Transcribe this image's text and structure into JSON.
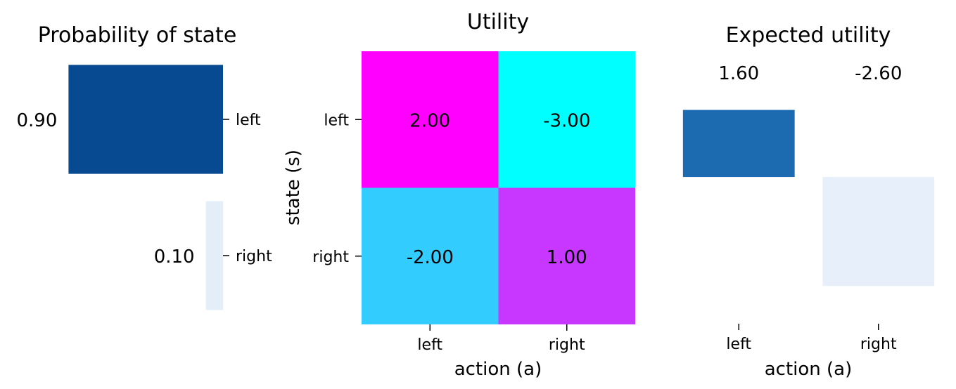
{
  "chart_data": [
    {
      "type": "bar",
      "orientation": "horizontal",
      "title": "Probability of state",
      "categories": [
        "left",
        "right"
      ],
      "values": [
        0.9,
        0.1
      ],
      "value_labels": [
        "0.90",
        "0.10"
      ],
      "colors": [
        "#084a91",
        "#e3eef9"
      ],
      "xlim": [
        1.0,
        0.0
      ],
      "grid": false
    },
    {
      "type": "heatmap",
      "title": "Utility",
      "xlabel": "action (a)",
      "ylabel": "state (s)",
      "x_categories": [
        "left",
        "right"
      ],
      "y_categories": [
        "left",
        "right"
      ],
      "values": [
        [
          2.0,
          -3.0
        ],
        [
          -2.0,
          1.0
        ]
      ],
      "value_labels": [
        [
          "2.00",
          "-3.00"
        ],
        [
          "-2.00",
          "1.00"
        ]
      ],
      "colors": [
        [
          "#ff00ff",
          "#00ffff"
        ],
        [
          "#33ccff",
          "#c837ff"
        ]
      ],
      "colormap": "cool"
    },
    {
      "type": "bar",
      "title": "Expected utility",
      "xlabel": "action (a)",
      "categories": [
        "left",
        "right"
      ],
      "values": [
        1.6,
        -2.6
      ],
      "value_labels": [
        "1.60",
        "-2.60"
      ],
      "colors": [
        "#1c6ab0",
        "#e7f0fa"
      ],
      "ylim": [
        -3.5,
        3.0
      ],
      "grid": false
    }
  ]
}
